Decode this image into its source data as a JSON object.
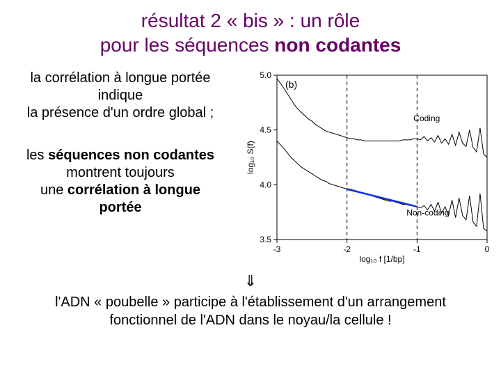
{
  "title": {
    "line1_pre": "résultat 2 « bis » : un rôle",
    "line2_pre": "pour les séquences ",
    "line2_bold": "non codantes"
  },
  "paragraph1": {
    "l1": "la corrélation à longue portée",
    "l2": "indique",
    "l3": "la présence d'un ordre global ;"
  },
  "paragraph2": {
    "l1_pre": "les ",
    "l1_b": "séquences non codantes",
    "l2": "montrent toujours",
    "l3_pre": "une ",
    "l3_b": "corrélation à longue",
    "l4_b": "portée"
  },
  "arrow_symbol": "⇓",
  "conclusion": {
    "l1": "l'ADN « poubelle » participe à l'établissement d'un arrangement",
    "l2": "fonctionnel de l'ADN dans le noyau/la cellule !"
  },
  "chart": {
    "type": "line",
    "panel_label": "(b)",
    "background_color": "#ffffff",
    "axis_color": "#000000",
    "grid_color": "#000000",
    "ylabel": "log₁₀ S(f)",
    "xlabel": "log₁₀ f  [1/bp]",
    "label_fontsize": 12,
    "xlim": [
      -3,
      0
    ],
    "ylim": [
      3.5,
      5.0
    ],
    "yticks": [
      3.5,
      4.0,
      4.5,
      5.0
    ],
    "xticks": [
      -3,
      -2,
      -1,
      0
    ],
    "vlines": {
      "positions": [
        -2,
        -1
      ],
      "style": "dashed",
      "color": "#000000"
    },
    "series": [
      {
        "name": "Coding",
        "label": "Coding",
        "label_pos": {
          "x": -1.05,
          "y": 4.58
        },
        "color": "#000000",
        "line_width": 1,
        "points": [
          [
            -3.0,
            4.97
          ],
          [
            -2.9,
            4.88
          ],
          [
            -2.85,
            4.83
          ],
          [
            -2.8,
            4.78
          ],
          [
            -2.75,
            4.73
          ],
          [
            -2.7,
            4.69
          ],
          [
            -2.65,
            4.66
          ],
          [
            -2.6,
            4.63
          ],
          [
            -2.55,
            4.6
          ],
          [
            -2.5,
            4.58
          ],
          [
            -2.45,
            4.55
          ],
          [
            -2.4,
            4.53
          ],
          [
            -2.35,
            4.51
          ],
          [
            -2.3,
            4.49
          ],
          [
            -2.25,
            4.48
          ],
          [
            -2.2,
            4.47
          ],
          [
            -2.15,
            4.46
          ],
          [
            -2.1,
            4.45
          ],
          [
            -2.05,
            4.44
          ],
          [
            -2.0,
            4.43
          ],
          [
            -1.95,
            4.42
          ],
          [
            -1.9,
            4.42
          ],
          [
            -1.85,
            4.41
          ],
          [
            -1.8,
            4.41
          ],
          [
            -1.75,
            4.4
          ],
          [
            -1.7,
            4.4
          ],
          [
            -1.65,
            4.4
          ],
          [
            -1.6,
            4.4
          ],
          [
            -1.55,
            4.4
          ],
          [
            -1.5,
            4.4
          ],
          [
            -1.45,
            4.4
          ],
          [
            -1.4,
            4.4
          ],
          [
            -1.35,
            4.4
          ],
          [
            -1.3,
            4.4
          ],
          [
            -1.25,
            4.4
          ],
          [
            -1.2,
            4.41
          ],
          [
            -1.15,
            4.41
          ],
          [
            -1.1,
            4.41
          ],
          [
            -1.05,
            4.42
          ],
          [
            -1.0,
            4.42
          ],
          [
            -0.95,
            4.41
          ],
          [
            -0.9,
            4.44
          ],
          [
            -0.85,
            4.4
          ],
          [
            -0.8,
            4.43
          ],
          [
            -0.75,
            4.39
          ],
          [
            -0.7,
            4.45
          ],
          [
            -0.65,
            4.38
          ],
          [
            -0.6,
            4.42
          ],
          [
            -0.55,
            4.37
          ],
          [
            -0.5,
            4.46
          ],
          [
            -0.45,
            4.36
          ],
          [
            -0.4,
            4.48
          ],
          [
            -0.35,
            4.38
          ],
          [
            -0.3,
            4.35
          ],
          [
            -0.25,
            4.5
          ],
          [
            -0.2,
            4.34
          ],
          [
            -0.15,
            4.3
          ],
          [
            -0.1,
            4.52
          ],
          [
            -0.05,
            4.28
          ],
          [
            0.0,
            4.25
          ]
        ]
      },
      {
        "name": "Non-coding",
        "label": "Non-coding",
        "label_pos": {
          "x": -1.15,
          "y": 3.72
        },
        "color": "#000000",
        "line_width": 1,
        "points": [
          [
            -3.0,
            4.4
          ],
          [
            -2.9,
            4.33
          ],
          [
            -2.85,
            4.29
          ],
          [
            -2.8,
            4.25
          ],
          [
            -2.75,
            4.22
          ],
          [
            -2.7,
            4.19
          ],
          [
            -2.65,
            4.16
          ],
          [
            -2.6,
            4.14
          ],
          [
            -2.55,
            4.12
          ],
          [
            -2.5,
            4.1
          ],
          [
            -2.45,
            4.08
          ],
          [
            -2.4,
            4.06
          ],
          [
            -2.35,
            4.04
          ],
          [
            -2.3,
            4.03
          ],
          [
            -2.25,
            4.01
          ],
          [
            -2.2,
            4.0
          ],
          [
            -2.15,
            3.99
          ],
          [
            -2.1,
            3.98
          ],
          [
            -2.05,
            3.97
          ],
          [
            -2.0,
            3.96
          ],
          [
            -1.95,
            3.96
          ],
          [
            -1.9,
            3.95
          ],
          [
            -1.85,
            3.94
          ],
          [
            -1.8,
            3.93
          ],
          [
            -1.75,
            3.92
          ],
          [
            -1.7,
            3.91
          ],
          [
            -1.65,
            3.9
          ],
          [
            -1.6,
            3.89
          ],
          [
            -1.55,
            3.88
          ],
          [
            -1.5,
            3.87
          ],
          [
            -1.45,
            3.86
          ],
          [
            -1.4,
            3.85
          ],
          [
            -1.35,
            3.85
          ],
          [
            -1.3,
            3.84
          ],
          [
            -1.25,
            3.83
          ],
          [
            -1.2,
            3.82
          ],
          [
            -1.15,
            3.82
          ],
          [
            -1.1,
            3.81
          ],
          [
            -1.05,
            3.81
          ],
          [
            -1.0,
            3.8
          ],
          [
            -0.95,
            3.79
          ],
          [
            -0.9,
            3.81
          ],
          [
            -0.85,
            3.77
          ],
          [
            -0.8,
            3.82
          ],
          [
            -0.75,
            3.76
          ],
          [
            -0.7,
            3.84
          ],
          [
            -0.65,
            3.74
          ],
          [
            -0.6,
            3.8
          ],
          [
            -0.55,
            3.72
          ],
          [
            -0.5,
            3.86
          ],
          [
            -0.45,
            3.7
          ],
          [
            -0.4,
            3.88
          ],
          [
            -0.35,
            3.72
          ],
          [
            -0.3,
            3.68
          ],
          [
            -0.25,
            3.9
          ],
          [
            -0.2,
            3.66
          ],
          [
            -0.15,
            3.62
          ],
          [
            -0.1,
            3.92
          ],
          [
            -0.05,
            3.6
          ],
          [
            0.0,
            3.58
          ]
        ]
      }
    ],
    "fit_line": {
      "color": "#1030e0",
      "line_width": 2.5,
      "x1": -2.0,
      "y1": 3.96,
      "x2": -1.0,
      "y2": 3.8
    }
  }
}
